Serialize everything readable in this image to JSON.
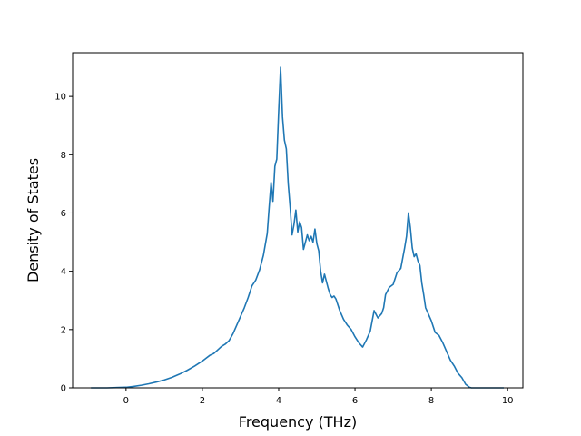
{
  "chart_data": {
    "type": "line",
    "title": "",
    "xlabel": "Frequency (THz)",
    "ylabel": "Density of States",
    "xlim": [
      -1.4,
      10.4
    ],
    "ylim": [
      0,
      11.5
    ],
    "xticks": [
      0,
      2,
      4,
      6,
      8,
      10
    ],
    "yticks": [
      0,
      2,
      4,
      6,
      8,
      10
    ],
    "grid": false,
    "legend": "none",
    "line_color": "#1f77b4",
    "series": [
      {
        "x": [
          -0.92,
          -0.5,
          0.0,
          0.2,
          0.4,
          0.6,
          0.8,
          1.0,
          1.2,
          1.4,
          1.6,
          1.8,
          2.0,
          2.1,
          2.2,
          2.3,
          2.4,
          2.5,
          2.6,
          2.7,
          2.8,
          2.9,
          3.0,
          3.1,
          3.2,
          3.3,
          3.4,
          3.5,
          3.6,
          3.7,
          3.75,
          3.8,
          3.85,
          3.9,
          3.95,
          4.0,
          4.05,
          4.1,
          4.15,
          4.2,
          4.25,
          4.3,
          4.35,
          4.4,
          4.45,
          4.5,
          4.55,
          4.6,
          4.65,
          4.7,
          4.75,
          4.8,
          4.85,
          4.9,
          4.95,
          5.0,
          5.05,
          5.1,
          5.15,
          5.2,
          5.3,
          5.35,
          5.4,
          5.45,
          5.5,
          5.6,
          5.7,
          5.8,
          5.9,
          6.0,
          6.1,
          6.2,
          6.3,
          6.4,
          6.45,
          6.5,
          6.6,
          6.7,
          6.75,
          6.8,
          6.9,
          7.0,
          7.1,
          7.2,
          7.3,
          7.35,
          7.4,
          7.45,
          7.5,
          7.55,
          7.6,
          7.65,
          7.7,
          7.75,
          7.8,
          7.85,
          7.9,
          8.0,
          8.1,
          8.2,
          8.3,
          8.4,
          8.5,
          8.6,
          8.7,
          8.8,
          8.9,
          9.0,
          9.05,
          9.2,
          9.5,
          9.9
        ],
        "y": [
          0.0,
          0.0,
          0.02,
          0.05,
          0.09,
          0.14,
          0.2,
          0.27,
          0.36,
          0.47,
          0.6,
          0.75,
          0.92,
          1.02,
          1.12,
          1.18,
          1.3,
          1.42,
          1.5,
          1.62,
          1.85,
          2.15,
          2.45,
          2.75,
          3.1,
          3.5,
          3.7,
          4.05,
          4.55,
          5.3,
          6.2,
          7.05,
          6.4,
          7.6,
          7.85,
          9.5,
          11.0,
          9.3,
          8.5,
          8.2,
          7.0,
          6.2,
          5.25,
          5.6,
          6.1,
          5.35,
          5.7,
          5.5,
          4.75,
          5.0,
          5.25,
          5.05,
          5.2,
          5.0,
          5.45,
          4.95,
          4.7,
          4.0,
          3.6,
          3.9,
          3.4,
          3.2,
          3.1,
          3.15,
          3.05,
          2.65,
          2.35,
          2.15,
          2.0,
          1.75,
          1.55,
          1.4,
          1.65,
          1.95,
          2.3,
          2.65,
          2.4,
          2.55,
          2.75,
          3.2,
          3.45,
          3.55,
          3.95,
          4.1,
          4.8,
          5.2,
          6.0,
          5.5,
          4.8,
          4.5,
          4.6,
          4.35,
          4.2,
          3.6,
          3.2,
          2.75,
          2.6,
          2.3,
          1.9,
          1.8,
          1.55,
          1.25,
          0.95,
          0.75,
          0.5,
          0.35,
          0.12,
          0.02,
          0.0,
          0.0,
          0.0,
          0.0
        ]
      }
    ]
  }
}
